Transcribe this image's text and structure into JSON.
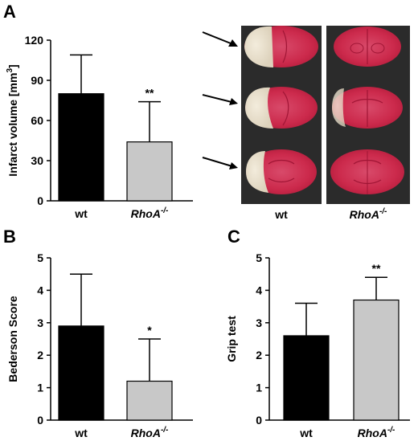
{
  "chart_data": [
    {
      "panel": "A",
      "type": "bar",
      "categories": [
        "wt",
        "RhoA-/-"
      ],
      "values": [
        80,
        44
      ],
      "errors": [
        29,
        30
      ],
      "significance": [
        "",
        "**"
      ],
      "ylabel": "Infarct volume [mm3]",
      "ylabel_parts": {
        "main": "Infarct volume [mm",
        "sup": "3",
        "end": "]"
      },
      "ylim": [
        0,
        120
      ],
      "yticks": [
        0,
        30,
        60,
        90,
        120
      ],
      "colors": [
        "#000000",
        "#c8c8c8"
      ]
    },
    {
      "panel": "B",
      "type": "bar",
      "categories": [
        "wt",
        "RhoA-/-"
      ],
      "values": [
        2.9,
        1.2
      ],
      "errors": [
        1.6,
        1.3
      ],
      "significance": [
        "",
        "*"
      ],
      "ylabel": "Bederson Score",
      "ylim": [
        0,
        5
      ],
      "yticks": [
        0,
        1,
        2,
        3,
        4,
        5
      ],
      "colors": [
        "#000000",
        "#c8c8c8"
      ]
    },
    {
      "panel": "C",
      "type": "bar",
      "categories": [
        "wt",
        "RhoA-/-"
      ],
      "values": [
        2.6,
        3.7
      ],
      "errors": [
        1.0,
        0.7
      ],
      "significance": [
        "",
        "**"
      ],
      "ylabel": "Grip test",
      "ylim": [
        0,
        5
      ],
      "yticks": [
        0,
        1,
        2,
        3,
        4,
        5
      ],
      "colors": [
        "#000000",
        "#c8c8c8"
      ]
    }
  ],
  "photos": {
    "labels": [
      {
        "main": "wt",
        "sup": ""
      },
      {
        "main": "RhoA",
        "sup": "-/-"
      }
    ]
  },
  "category_labels": [
    {
      "main": "wt",
      "sup": ""
    },
    {
      "main": "RhoA",
      "sup": "-/-"
    }
  ]
}
